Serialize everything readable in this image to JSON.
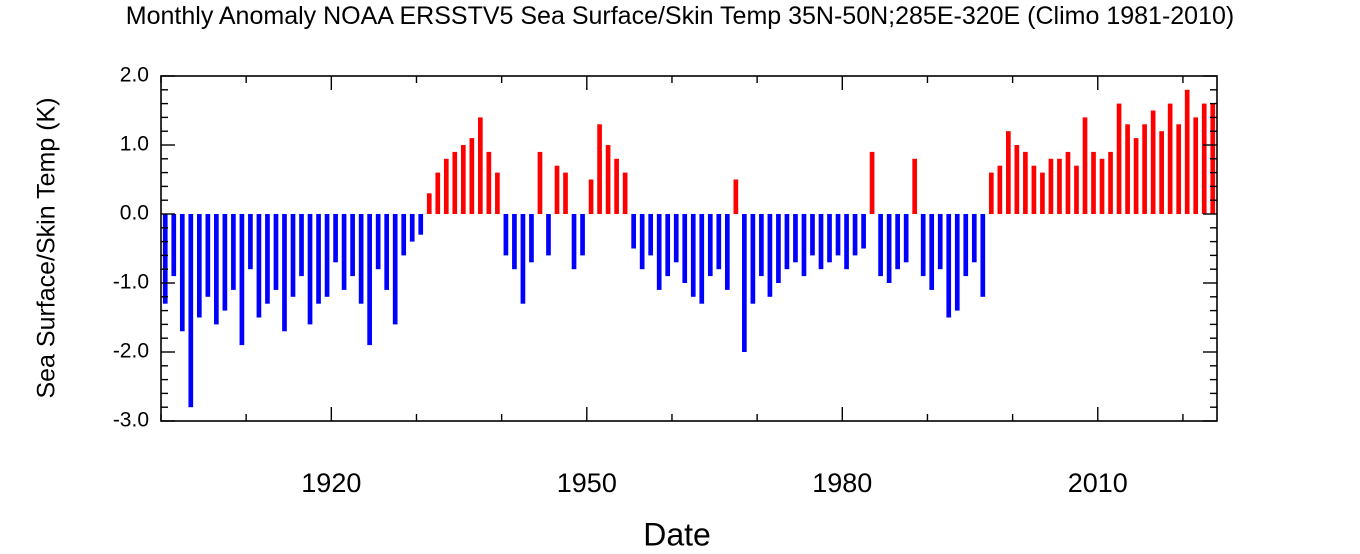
{
  "chart_data": {
    "type": "bar",
    "title": "Monthly Anomaly NOAA ERSSTV5   Sea Surface/Skin Temp 35N-50N;285E-320E (Climo 1981-2010)",
    "xlabel": "Date",
    "ylabel": "Sea Surface/Skin Temp (K)",
    "xlim": [
      1900,
      2024
    ],
    "ylim": [
      -3.0,
      2.0
    ],
    "yticks": [
      "2.0",
      "1.0",
      "0.0",
      "-1.0",
      "-2.0",
      "-3.0"
    ],
    "xticks": [
      "1920",
      "1950",
      "1980",
      "2010"
    ],
    "grid": false,
    "positive_color": "#ff0000",
    "negative_color": "#0000ff",
    "note_series": "monthly anomaly bars; annual approximate values below (x = year)",
    "x": [
      1900,
      1901,
      1902,
      1903,
      1904,
      1905,
      1906,
      1907,
      1908,
      1909,
      1910,
      1911,
      1912,
      1913,
      1914,
      1915,
      1916,
      1917,
      1918,
      1919,
      1920,
      1921,
      1922,
      1923,
      1924,
      1925,
      1926,
      1927,
      1928,
      1929,
      1930,
      1931,
      1932,
      1933,
      1934,
      1935,
      1936,
      1937,
      1938,
      1939,
      1940,
      1941,
      1942,
      1943,
      1944,
      1945,
      1946,
      1947,
      1948,
      1949,
      1950,
      1951,
      1952,
      1953,
      1954,
      1955,
      1956,
      1957,
      1958,
      1959,
      1960,
      1961,
      1962,
      1963,
      1964,
      1965,
      1966,
      1967,
      1968,
      1969,
      1970,
      1971,
      1972,
      1973,
      1974,
      1975,
      1976,
      1977,
      1978,
      1979,
      1980,
      1981,
      1982,
      1983,
      1984,
      1985,
      1986,
      1987,
      1988,
      1989,
      1990,
      1991,
      1992,
      1993,
      1994,
      1995,
      1996,
      1997,
      1998,
      1999,
      2000,
      2001,
      2002,
      2003,
      2004,
      2005,
      2006,
      2007,
      2008,
      2009,
      2010,
      2011,
      2012,
      2013,
      2014,
      2015,
      2016,
      2017,
      2018,
      2019,
      2020,
      2021,
      2022,
      2023
    ],
    "values": [
      -1.3,
      -0.9,
      -1.7,
      -2.8,
      -1.5,
      -1.2,
      -1.6,
      -1.4,
      -1.1,
      -1.9,
      -0.8,
      -1.5,
      -1.3,
      -1.1,
      -1.7,
      -1.2,
      -0.9,
      -1.6,
      -1.3,
      -1.2,
      -0.7,
      -1.1,
      -0.9,
      -1.3,
      -1.9,
      -0.8,
      -1.1,
      -1.6,
      -0.6,
      -0.4,
      -0.3,
      0.3,
      0.6,
      0.8,
      0.9,
      1.0,
      1.1,
      1.4,
      0.9,
      0.6,
      -0.6,
      -0.8,
      -1.3,
      -0.7,
      0.9,
      -0.6,
      0.7,
      0.6,
      -0.8,
      -0.6,
      0.5,
      1.3,
      1.0,
      0.8,
      0.6,
      -0.5,
      -0.8,
      -0.6,
      -1.1,
      -0.9,
      -0.7,
      -1.0,
      -1.2,
      -1.3,
      -0.9,
      -0.8,
      -1.1,
      0.5,
      -2.0,
      -1.3,
      -0.9,
      -1.2,
      -1.0,
      -0.8,
      -0.7,
      -0.9,
      -0.6,
      -0.8,
      -0.7,
      -0.6,
      -0.8,
      -0.6,
      -0.5,
      0.9,
      -0.9,
      -1.0,
      -0.8,
      -0.7,
      0.8,
      -0.9,
      -1.1,
      -0.8,
      -1.5,
      -1.4,
      -0.9,
      -0.7,
      -1.2,
      0.6,
      0.7,
      1.2,
      1.0,
      0.9,
      0.7,
      0.6,
      0.8,
      0.8,
      0.9,
      0.7,
      1.4,
      0.9,
      0.8,
      0.9,
      1.6,
      1.3,
      1.1,
      1.3,
      1.5,
      1.2,
      1.6,
      1.3,
      1.8,
      1.4,
      1.6,
      1.6
    ]
  }
}
